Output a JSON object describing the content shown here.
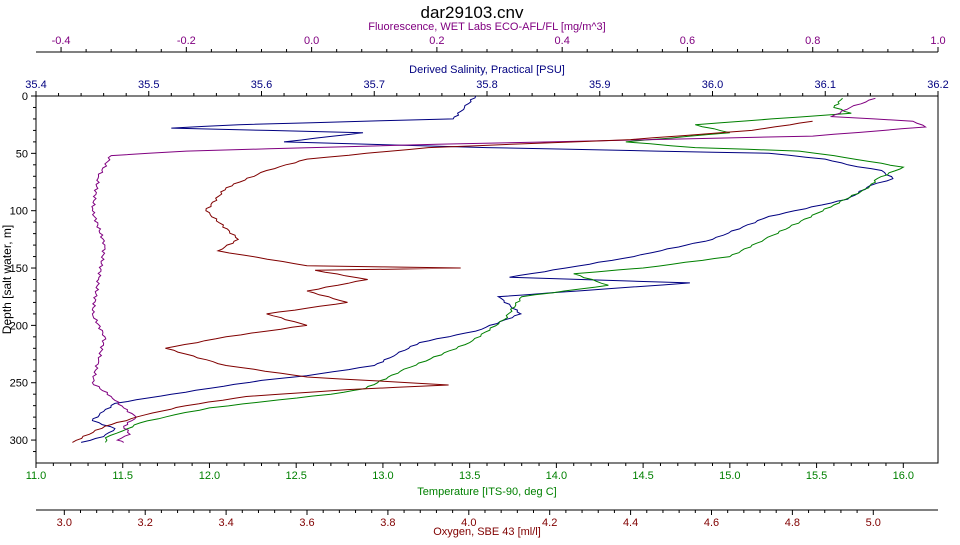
{
  "chart_data": {
    "type": "line",
    "title": "dar29103.cnv",
    "y_axis": {
      "label": "Depth [salt water, m]",
      "range": [
        0,
        320
      ],
      "inverted": true,
      "ticks": [
        0,
        50,
        100,
        150,
        200,
        250,
        300
      ],
      "color": "#000000"
    },
    "x_axes": [
      {
        "id": "fluorescence",
        "label": "Fluorescence, WET Labs ECO-AFL/FL [mg/m^3]",
        "position": "top-1",
        "range": [
          -0.44,
          1.0
        ],
        "ticks": [
          -0.4,
          -0.2,
          0.0,
          0.2,
          0.4,
          0.6,
          0.8,
          1.0
        ],
        "tick_labels": [
          "-0.4",
          "-0.2",
          "0.0",
          "0.2",
          "0.4",
          "0.6",
          "0.8",
          "1.0"
        ],
        "color": "#800080"
      },
      {
        "id": "salinity",
        "label": "Derived Salinity, Practical [PSU]",
        "position": "top-2",
        "range": [
          35.4,
          36.2
        ],
        "ticks": [
          35.4,
          35.5,
          35.6,
          35.7,
          35.8,
          35.9,
          36.0,
          36.1,
          36.2
        ],
        "tick_labels": [
          "35.4",
          "35.5",
          "35.6",
          "35.7",
          "35.8",
          "35.9",
          "36.0",
          "36.1",
          "36.2"
        ],
        "color": "#000080"
      },
      {
        "id": "temperature",
        "label": "Temperature [ITS-90, deg C]",
        "position": "bottom-1",
        "range": [
          11.0,
          16.2
        ],
        "ticks": [
          11.0,
          11.5,
          12.0,
          12.5,
          13.0,
          13.5,
          14.0,
          14.5,
          15.0,
          15.5,
          16.0
        ],
        "tick_labels": [
          "11.0",
          "11.5",
          "12.0",
          "12.5",
          "13.0",
          "13.5",
          "14.0",
          "14.5",
          "15.0",
          "15.5",
          "16.0"
        ],
        "color": "#008000"
      },
      {
        "id": "oxygen",
        "label": "Oxygen, SBE 43 [ml/l]",
        "position": "bottom-2",
        "range": [
          2.93,
          5.16
        ],
        "ticks": [
          3.0,
          3.2,
          3.4,
          3.6,
          3.8,
          4.0,
          4.2,
          4.4,
          4.6,
          4.8,
          5.0
        ],
        "tick_labels": [
          "3.0",
          "3.2",
          "3.4",
          "3.6",
          "3.8",
          "4.0",
          "4.2",
          "4.4",
          "4.6",
          "4.8",
          "5.0"
        ],
        "color": "#800000"
      }
    ],
    "series": [
      {
        "axis": "salinity",
        "color": "#000080",
        "x": [
          35.79,
          35.78,
          35.77,
          35.58,
          35.52,
          35.69,
          35.62,
          35.8,
          35.95,
          36.05,
          36.1,
          36.12,
          36.15,
          36.16,
          36.14,
          36.12,
          36.05,
          36.0,
          35.93,
          35.87,
          35.82,
          35.98,
          35.81,
          35.83,
          35.79,
          35.74,
          35.72,
          35.7,
          35.64,
          35.6,
          35.52,
          35.47,
          35.46,
          35.45,
          35.47,
          35.46,
          35.44
        ],
        "y": [
          0,
          10,
          20,
          25,
          28,
          32,
          40,
          45,
          48,
          50,
          55,
          60,
          65,
          72,
          78,
          90,
          105,
          125,
          140,
          150,
          158,
          163,
          175,
          190,
          205,
          215,
          225,
          235,
          244,
          248,
          260,
          268,
          275,
          283,
          290,
          297,
          302
        ]
      },
      {
        "axis": "temperature",
        "color": "#008000",
        "x": [
          15.65,
          15.6,
          15.7,
          14.8,
          15.0,
          14.4,
          14.8,
          15.4,
          15.6,
          15.8,
          16.0,
          15.85,
          15.8,
          15.6,
          15.2,
          15.0,
          14.5,
          14.1,
          14.3,
          13.8,
          13.7,
          13.5,
          13.1,
          12.9,
          12.7,
          12.4,
          12.0,
          11.8,
          11.6,
          11.5,
          11.4,
          11.4
        ],
        "y": [
          2,
          10,
          15,
          25,
          32,
          40,
          45,
          48,
          52,
          57,
          62,
          72,
          80,
          95,
          125,
          140,
          150,
          155,
          165,
          175,
          195,
          215,
          240,
          255,
          260,
          265,
          272,
          278,
          285,
          292,
          298,
          302
        ]
      },
      {
        "axis": "fluorescence",
        "color": "#800080",
        "x": [
          0.9,
          0.86,
          0.83,
          0.96,
          0.98,
          0.8,
          0.2,
          -0.2,
          -0.32,
          -0.34,
          -0.35,
          -0.33,
          -0.34,
          -0.35,
          -0.33,
          -0.34,
          -0.35,
          -0.32,
          -0.3,
          -0.28,
          -0.3,
          -0.29,
          -0.31,
          -0.3
        ],
        "y": [
          2,
          10,
          18,
          22,
          27,
          35,
          42,
          48,
          52,
          70,
          100,
          130,
          160,
          190,
          210,
          230,
          250,
          262,
          272,
          280,
          288,
          295,
          300,
          302
        ]
      },
      {
        "axis": "oxygen",
        "color": "#800000",
        "x": [
          4.85,
          4.7,
          4.4,
          3.9,
          3.6,
          3.5,
          3.4,
          3.35,
          3.43,
          3.38,
          3.6,
          3.98,
          3.62,
          3.75,
          3.6,
          3.7,
          3.5,
          3.6,
          3.4,
          3.25,
          3.4,
          3.6,
          3.95,
          3.7,
          3.45,
          3.3,
          3.2,
          3.1,
          3.02
        ],
        "y": [
          22,
          30,
          38,
          45,
          55,
          65,
          80,
          100,
          125,
          135,
          148,
          150,
          152,
          160,
          170,
          180,
          190,
          200,
          210,
          220,
          235,
          245,
          252,
          256,
          262,
          270,
          278,
          288,
          302
        ]
      }
    ]
  }
}
